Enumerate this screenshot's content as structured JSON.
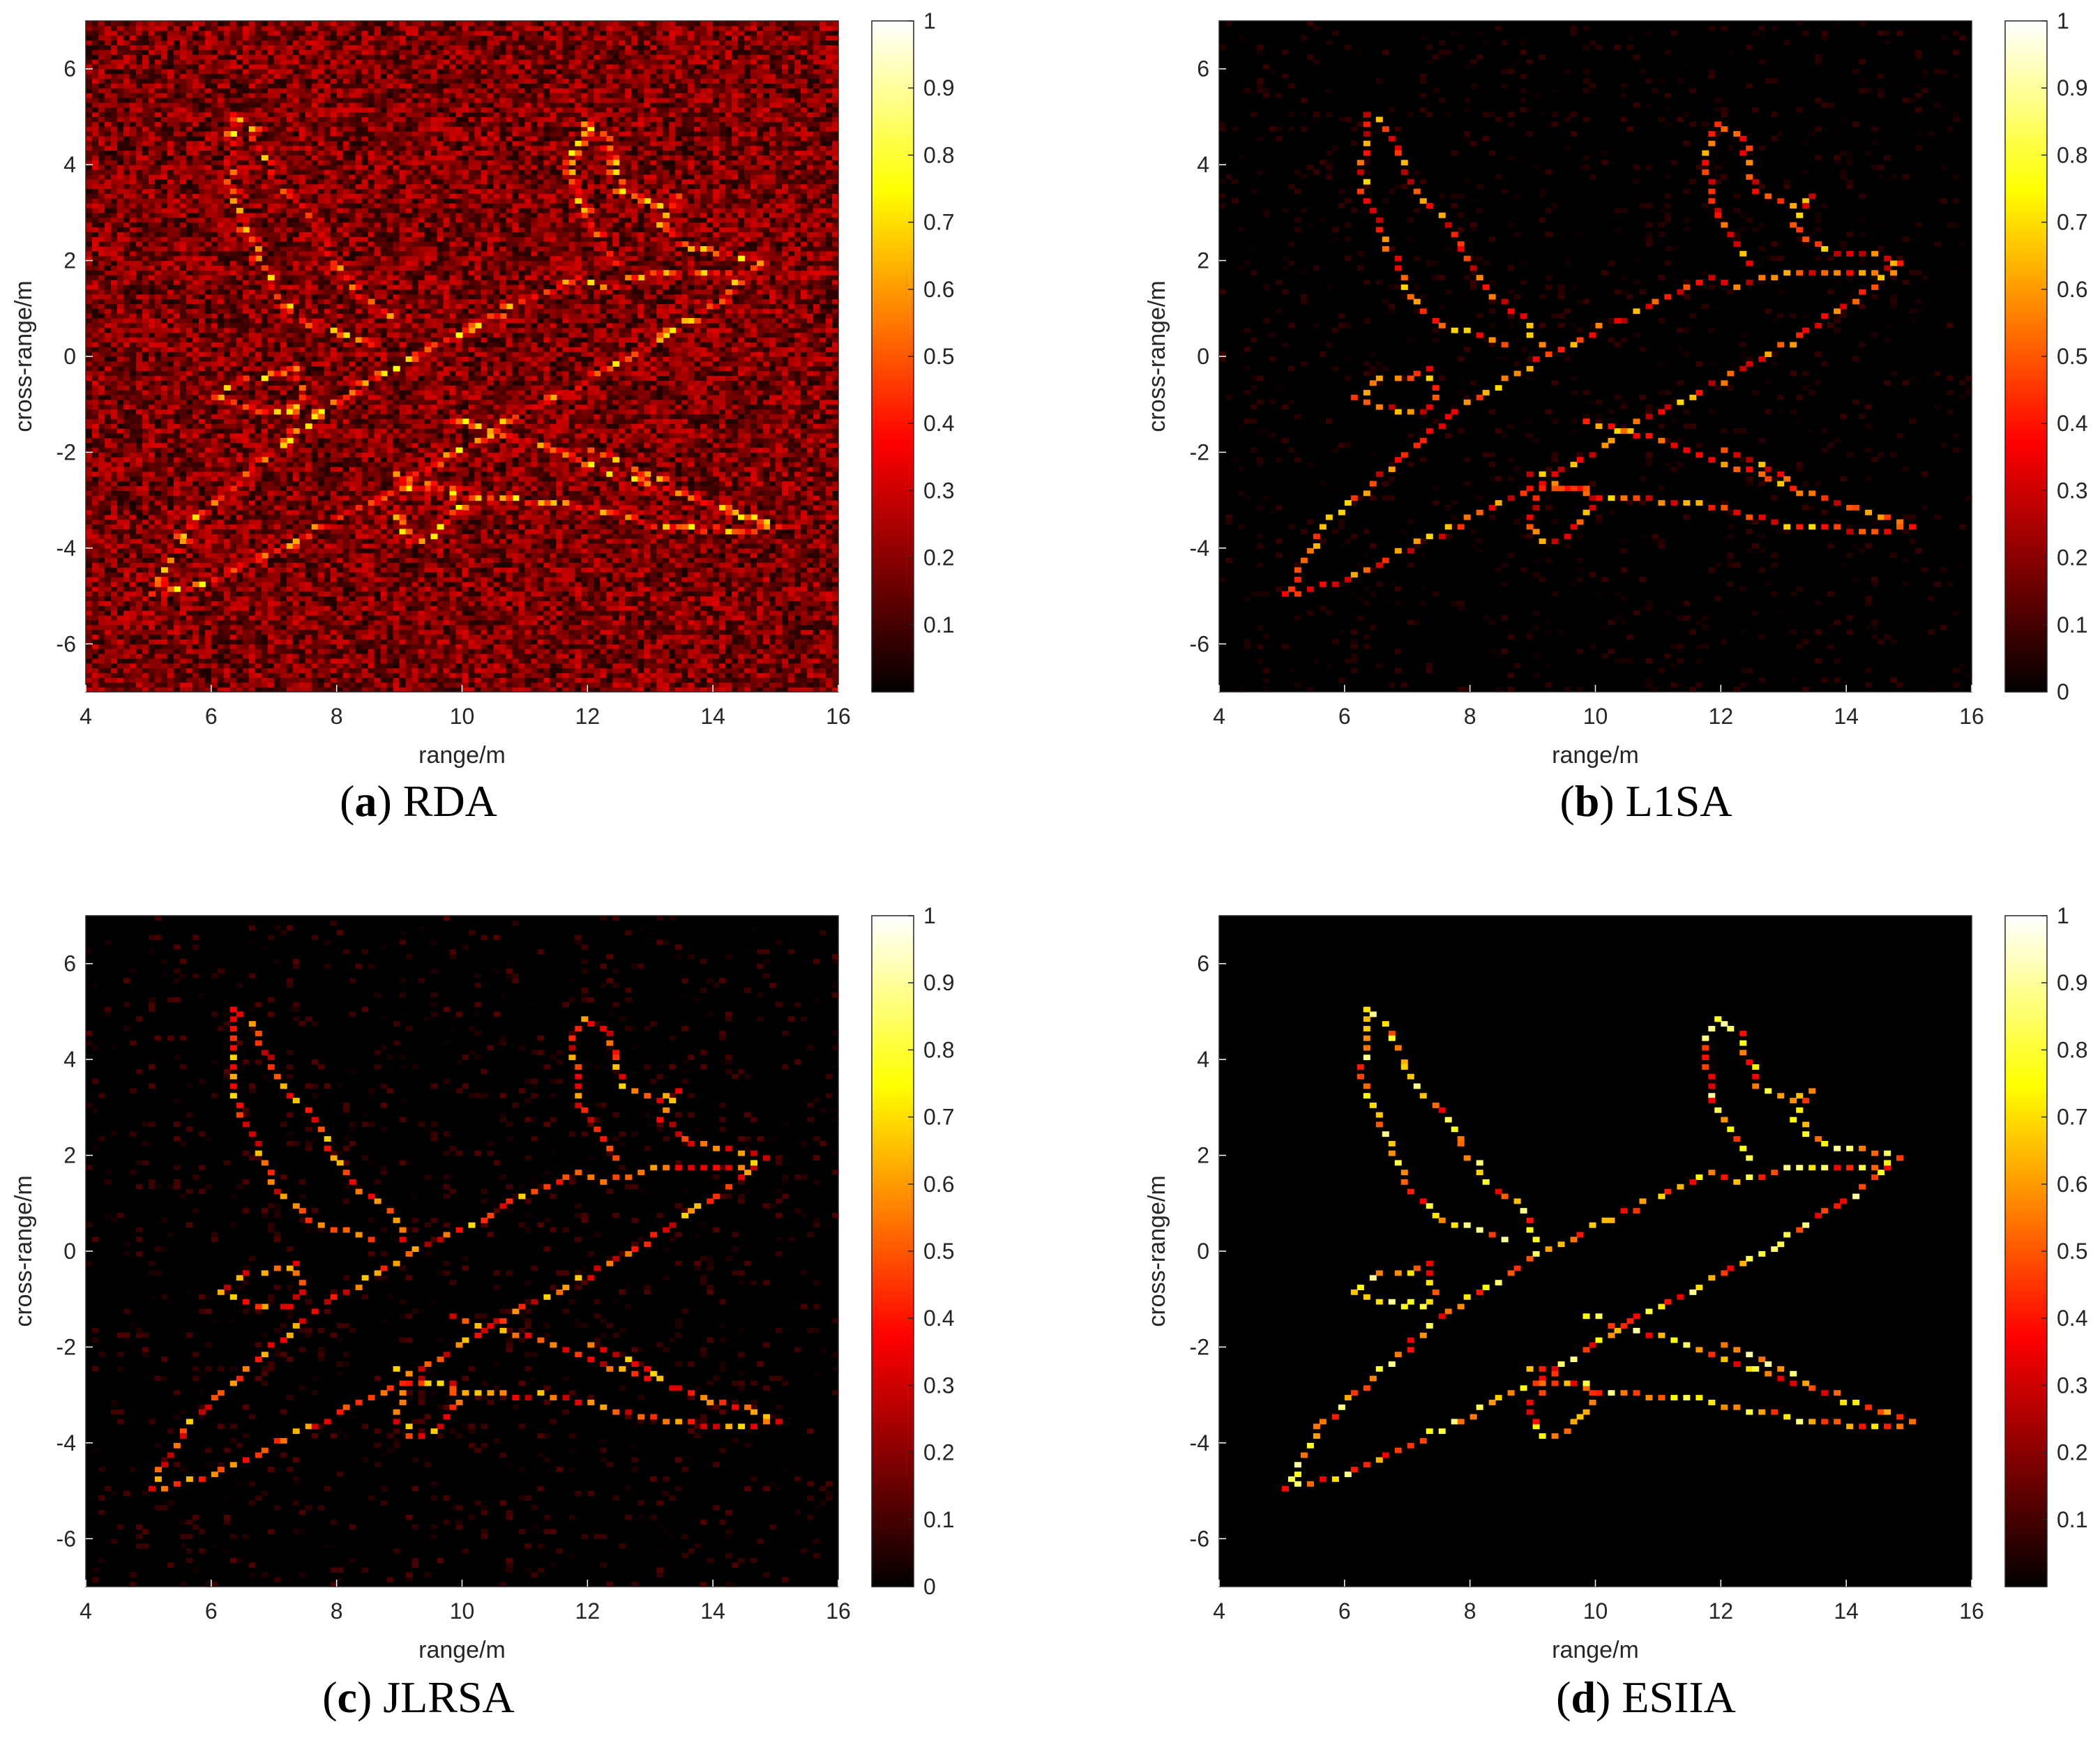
{
  "chart_data": [
    {
      "type": "heatmap",
      "caption_letter": "a",
      "caption_method": "RDA",
      "xlabel": "range/m",
      "ylabel": "cross-range/m",
      "xlim": [
        4,
        16
      ],
      "ylim": [
        -7,
        7
      ],
      "xticks": [
        4,
        6,
        8,
        10,
        12,
        14,
        16
      ],
      "yticks": [
        -6,
        -4,
        -2,
        0,
        2,
        4,
        6
      ],
      "colorbar": {
        "min": 0,
        "max": 1,
        "ticks": [
          0.1,
          0.2,
          0.3,
          0.4,
          0.5,
          0.6,
          0.7,
          0.8,
          0.9,
          1
        ]
      },
      "colormap": "hot",
      "background_level": 0.18,
      "background_noise": 0.14,
      "target_level": 0.55
    },
    {
      "type": "heatmap",
      "caption_letter": "b",
      "caption_method": "L1SA",
      "xlabel": "range/m",
      "ylabel": "cross-range/m",
      "xlim": [
        4,
        16
      ],
      "ylim": [
        -7,
        7
      ],
      "xticks": [
        4,
        6,
        8,
        10,
        12,
        14,
        16
      ],
      "yticks": [
        -6,
        -4,
        -2,
        0,
        2,
        4,
        6
      ],
      "colorbar": {
        "min": 0,
        "max": 1,
        "ticks": [
          0,
          0.1,
          0.2,
          0.3,
          0.4,
          0.5,
          0.6,
          0.7,
          0.8,
          0.9,
          1
        ]
      },
      "colormap": "hot",
      "background_level": 0.0,
      "background_noise": 0.02,
      "target_level": 0.5
    },
    {
      "type": "heatmap",
      "caption_letter": "c",
      "caption_method": "JLRSA",
      "xlabel": "range/m",
      "ylabel": "cross-range/m",
      "xlim": [
        4,
        16
      ],
      "ylim": [
        -7,
        7
      ],
      "xticks": [
        4,
        6,
        8,
        10,
        12,
        14,
        16
      ],
      "yticks": [
        -6,
        -4,
        -2,
        0,
        2,
        4,
        6
      ],
      "colorbar": {
        "min": 0,
        "max": 1,
        "ticks": [
          0,
          0.1,
          0.2,
          0.3,
          0.4,
          0.5,
          0.6,
          0.7,
          0.8,
          0.9,
          1
        ]
      },
      "colormap": "hot",
      "background_level": 0.0,
      "background_noise": 0.03,
      "target_level": 0.5
    },
    {
      "type": "heatmap",
      "caption_letter": "d",
      "caption_method": "ESIIA",
      "xlabel": "range/m",
      "ylabel": "cross-range/m",
      "xlim": [
        4,
        16
      ],
      "ylim": [
        -7,
        7
      ],
      "xticks": [
        4,
        6,
        8,
        10,
        12,
        14,
        16
      ],
      "yticks": [
        -6,
        -4,
        -2,
        0,
        2,
        4,
        6
      ],
      "colorbar": {
        "min": 0,
        "max": 1,
        "ticks": [
          0.1,
          0.2,
          0.3,
          0.4,
          0.5,
          0.6,
          0.7,
          0.8,
          0.9,
          1
        ]
      },
      "colormap": "hot",
      "background_level": 0.0,
      "background_noise": 0.0,
      "target_level": 0.65
    }
  ],
  "target_outline": [
    [
      [
        5.0,
        -5.0
      ],
      [
        5.8,
        -4.8
      ],
      [
        8.8,
        -2.9
      ],
      [
        10.8,
        -1.3
      ],
      [
        12.6,
        -0.1
      ],
      [
        13.9,
        1.0
      ],
      [
        14.8,
        1.9
      ],
      [
        14.4,
        1.7
      ],
      [
        13.0,
        1.7
      ],
      [
        12.2,
        1.4
      ],
      [
        11.8,
        1.6
      ],
      [
        9.2,
        0.0
      ],
      [
        7.6,
        -1.3
      ],
      [
        5.6,
        -3.6
      ],
      [
        5.0,
        -5.0
      ]
    ],
    [
      [
        6.3,
        5.0
      ],
      [
        6.6,
        4.7
      ],
      [
        7.0,
        3.6
      ],
      [
        7.6,
        2.7
      ],
      [
        8.2,
        1.4
      ],
      [
        8.8,
        0.8
      ],
      [
        9.1,
        0.0
      ]
    ],
    [
      [
        6.3,
        5.0
      ],
      [
        6.25,
        3.4
      ],
      [
        6.6,
        2.4
      ],
      [
        7.0,
        1.2
      ],
      [
        7.5,
        0.6
      ],
      [
        8.1,
        0.4
      ],
      [
        8.7,
        0.1
      ]
    ],
    [
      [
        11.9,
        4.8
      ],
      [
        12.3,
        4.5
      ],
      [
        12.5,
        3.4
      ],
      [
        13.1,
        3.1
      ],
      [
        13.4,
        3.3
      ],
      [
        13.1,
        2.7
      ],
      [
        13.6,
        2.2
      ],
      [
        14.6,
        2.0
      ],
      [
        14.9,
        1.9
      ]
    ],
    [
      [
        11.9,
        4.8
      ],
      [
        11.7,
        4.2
      ],
      [
        11.8,
        3.2
      ],
      [
        12.0,
        2.7
      ],
      [
        12.3,
        2.1
      ],
      [
        12.5,
        1.7
      ]
    ],
    [
      [
        9.8,
        -1.4
      ],
      [
        10.4,
        -1.6
      ],
      [
        11.2,
        -1.9
      ],
      [
        12.0,
        -2.3
      ],
      [
        13.6,
        -3.0
      ],
      [
        14.8,
        -3.5
      ],
      [
        15.0,
        -3.55
      ],
      [
        14.6,
        -3.7
      ],
      [
        13.2,
        -3.6
      ],
      [
        11.6,
        -3.1
      ],
      [
        10.0,
        -3.0
      ],
      [
        8.7,
        -2.4
      ]
    ],
    [
      [
        12.0,
        -2.0
      ],
      [
        12.6,
        -2.3
      ],
      [
        13.2,
        -2.7
      ]
    ],
    [
      [
        6.8,
        -0.5
      ],
      [
        7.3,
        -0.3
      ],
      [
        7.4,
        -0.9
      ],
      [
        7.2,
        -1.2
      ],
      [
        6.5,
        -1.1
      ],
      [
        6.1,
        -0.9
      ],
      [
        6.5,
        -0.5
      ],
      [
        6.8,
        -0.5
      ]
    ],
    [
      [
        9.1,
        -2.8
      ],
      [
        9.8,
        -2.8
      ],
      [
        9.9,
        -3.2
      ],
      [
        9.5,
        -3.8
      ],
      [
        9.1,
        -3.9
      ],
      [
        8.9,
        -3.4
      ],
      [
        9.1,
        -2.8
      ]
    ]
  ]
}
